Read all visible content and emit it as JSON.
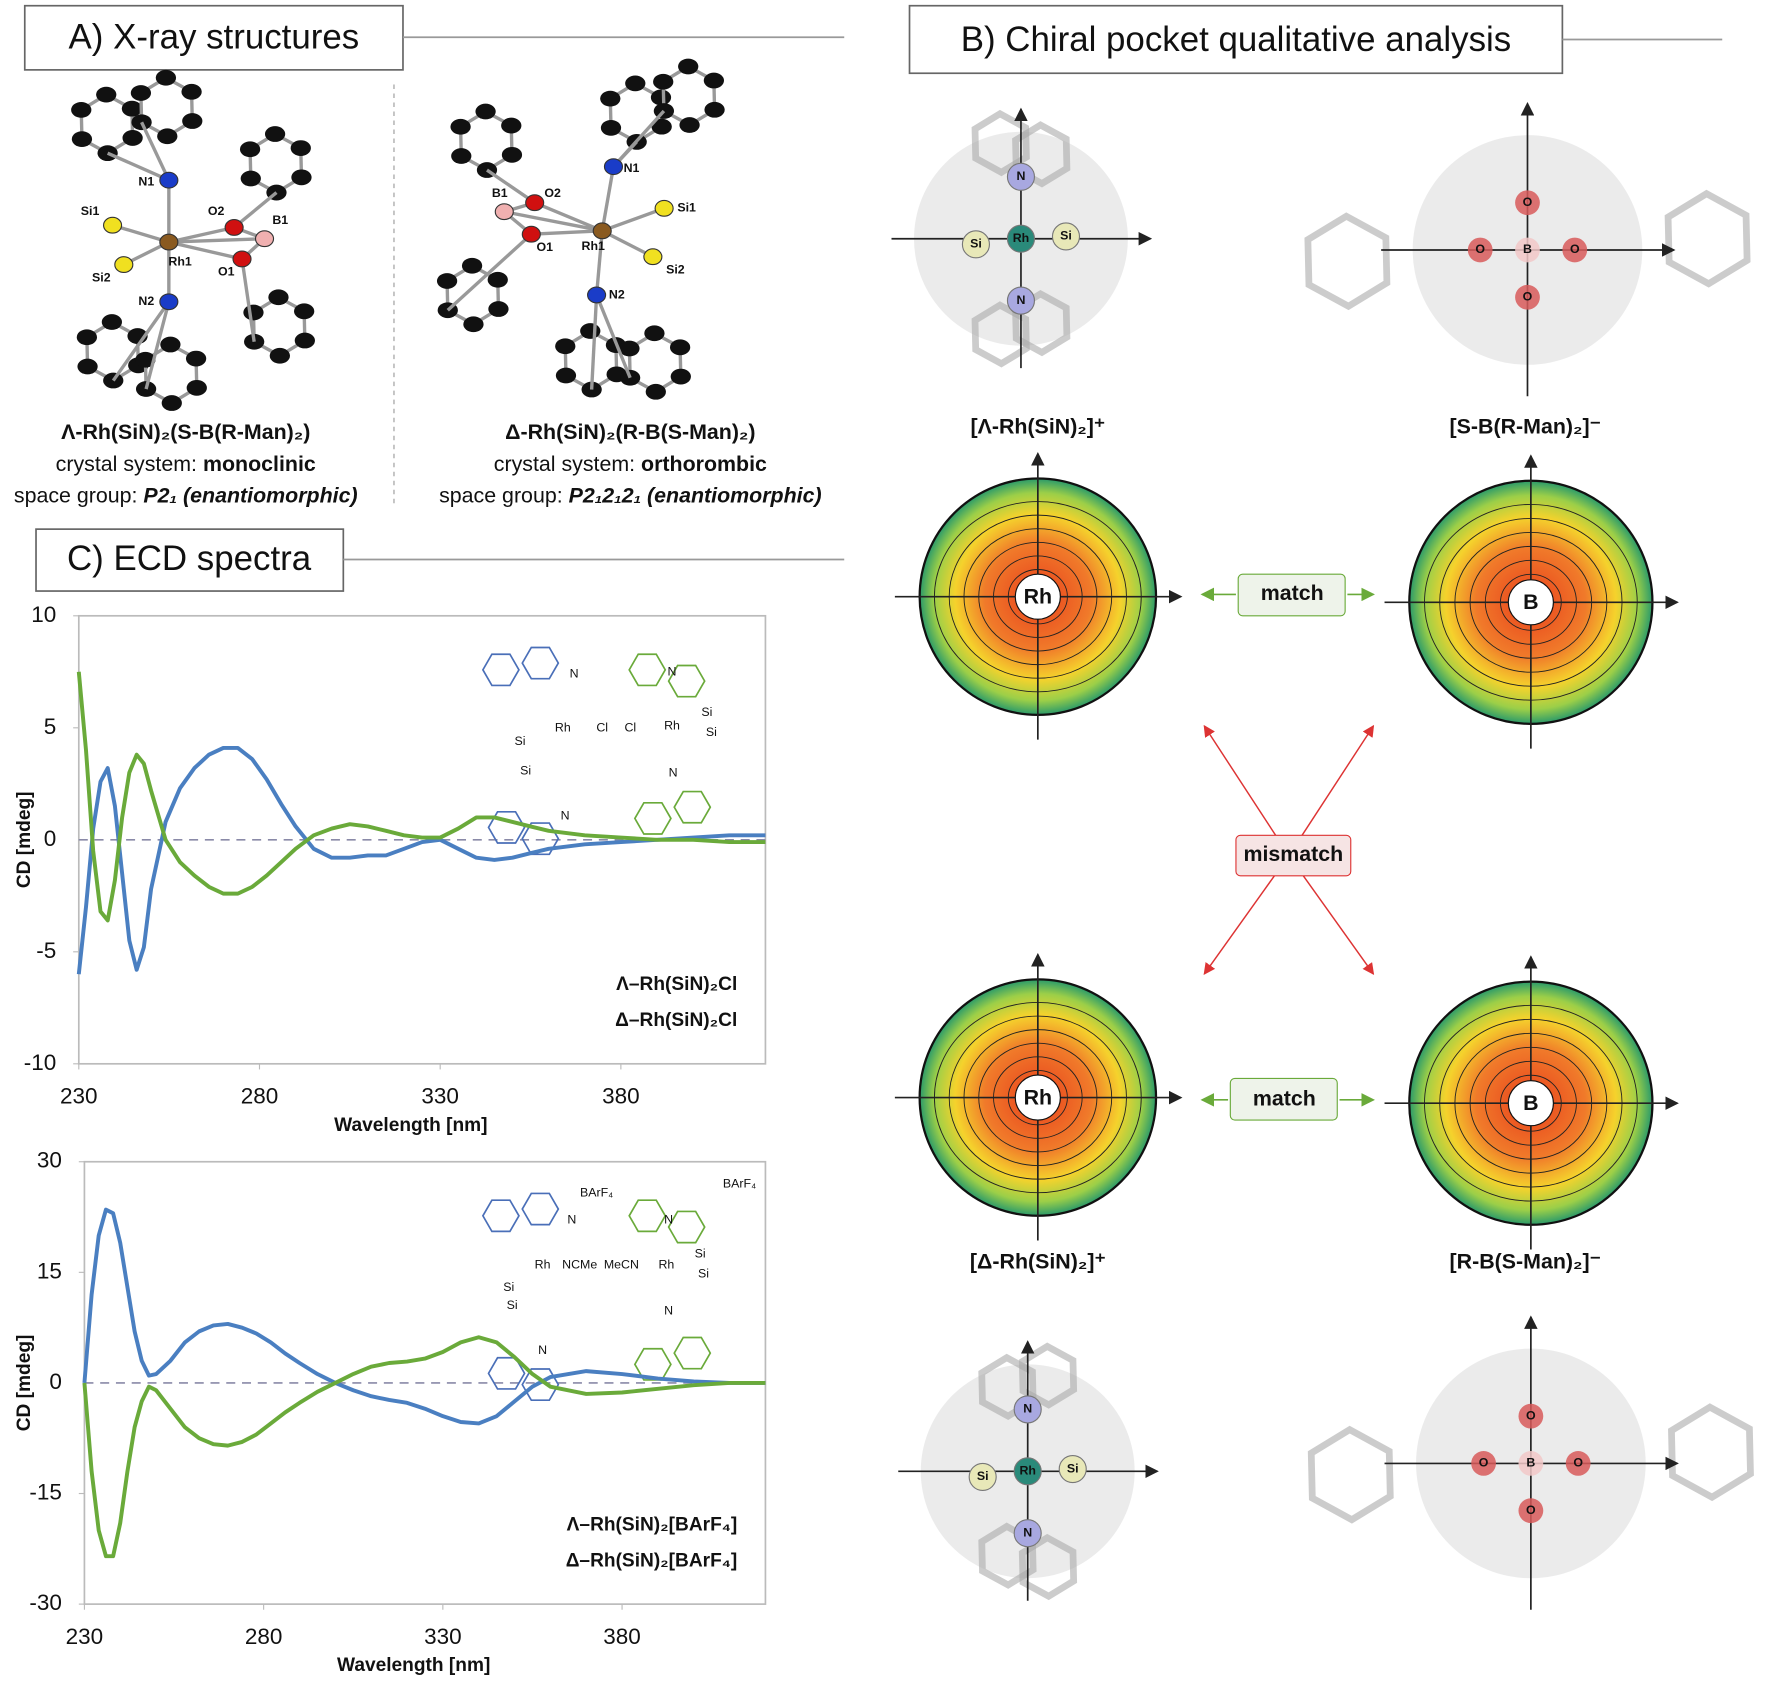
{
  "panel_a": {
    "title": "A) X-ray structures",
    "structures": [
      {
        "name": "Λ-Rh(SiN)₂(S-B(R-Man)₂)",
        "crystal_system_label": "crystal system: ",
        "crystal_system": "monoclinic",
        "space_group_label": "space group: ",
        "space_group": "P2₁ (enantiomorphic)",
        "atoms": [
          "N1",
          "Si1",
          "Si2",
          "Rh1",
          "N2",
          "O2",
          "B1",
          "O1"
        ]
      },
      {
        "name": "Δ-Rh(SiN)₂(R-B(S-Man)₂)",
        "crystal_system_label": "crystal system: ",
        "crystal_system": "orthorombic",
        "space_group_label": "space group: ",
        "space_group": "P2₁2₁2₁ (enantiomorphic)",
        "atoms": [
          "N1",
          "Si1",
          "Si2",
          "Rh1",
          "N2",
          "O2",
          "B1",
          "O1"
        ]
      }
    ]
  },
  "panel_b": {
    "title": "B) Chiral pocket qualitative analysis",
    "top_labels": [
      "[Λ-Rh(SiN)₂]⁺",
      "[S-B(R-Man)₂]⁻"
    ],
    "bottom_labels": [
      "[Δ-Rh(SiN)₂]⁺",
      "[R-B(S-Man)₂]⁻"
    ],
    "match": "match",
    "mismatch": "mismatch",
    "centers": [
      "Rh",
      "B"
    ],
    "cation_atoms": [
      "N",
      "Si",
      "Rh",
      "Si",
      "N"
    ],
    "anion_atoms": [
      "O",
      "O",
      "B",
      "O",
      "O"
    ]
  },
  "panel_c": {
    "title": "C) ECD spectra"
  },
  "chart_data": [
    {
      "type": "line",
      "xlabel": "Wavelength [nm]",
      "ylabel": "CD [mdeg]",
      "xlim": [
        230,
        420
      ],
      "xticks": [
        230,
        280,
        330,
        380
      ],
      "ylim": [
        -10,
        10
      ],
      "yticks": [
        -10,
        -5,
        0,
        5,
        10
      ],
      "inset_left": [
        "N",
        "Si",
        "Rh",
        "Cl",
        "Si",
        "N"
      ],
      "inset_right": [
        "N",
        "Cl",
        "Rh",
        "Si",
        "Si",
        "N"
      ],
      "x": [
        230,
        232,
        234,
        236,
        238,
        240,
        242,
        244,
        246,
        248,
        250,
        254,
        258,
        262,
        266,
        270,
        274,
        278,
        282,
        286,
        290,
        295,
        300,
        305,
        310,
        315,
        320,
        325,
        330,
        335,
        340,
        345,
        350,
        355,
        360,
        370,
        380,
        390,
        400,
        410,
        420
      ],
      "series": [
        {
          "name": "Λ–Rh(SiN)₂Cl",
          "color": "#4a7fc1",
          "values": [
            -6,
            -3,
            0.5,
            2.6,
            3.2,
            1.5,
            -1.5,
            -4.5,
            -5.8,
            -4.8,
            -2.2,
            0.8,
            2.3,
            3.2,
            3.8,
            4.1,
            4.1,
            3.6,
            2.7,
            1.6,
            0.6,
            -0.4,
            -0.8,
            -0.8,
            -0.7,
            -0.7,
            -0.4,
            -0.1,
            0,
            -0.4,
            -0.8,
            -0.9,
            -0.8,
            -0.6,
            -0.4,
            -0.2,
            -0.1,
            0,
            0.1,
            0.2,
            0.2
          ]
        },
        {
          "name": "Δ–Rh(SiN)₂Cl",
          "color": "#6aaa3a",
          "values": [
            7.5,
            4,
            -0.5,
            -3.2,
            -3.6,
            -1.8,
            1,
            3,
            3.8,
            3.4,
            2.2,
            0,
            -1,
            -1.6,
            -2.1,
            -2.4,
            -2.4,
            -2.1,
            -1.6,
            -1,
            -0.4,
            0.2,
            0.5,
            0.7,
            0.6,
            0.4,
            0.2,
            0.1,
            0.1,
            0.5,
            1,
            1,
            0.8,
            0.6,
            0.4,
            0.2,
            0.1,
            0,
            0,
            -0.1,
            -0.1
          ]
        }
      ]
    },
    {
      "type": "line",
      "xlabel": "Wavelength [nm]",
      "ylabel": "CD [mdeg]",
      "xlim": [
        230,
        420
      ],
      "xticks": [
        230,
        280,
        330,
        380
      ],
      "ylim": [
        -30,
        30
      ],
      "yticks": [
        -30,
        -15,
        0,
        15,
        30
      ],
      "inset_left": [
        "N",
        "Si",
        "Rh",
        "NCMe",
        "Si",
        "N",
        "BArF₄"
      ],
      "inset_right": [
        "N",
        "MeCN",
        "Rh",
        "Si",
        "Si",
        "N",
        "BArF₄"
      ],
      "x": [
        230,
        232,
        234,
        236,
        238,
        240,
        242,
        244,
        246,
        248,
        250,
        254,
        258,
        262,
        266,
        270,
        274,
        278,
        282,
        286,
        290,
        295,
        300,
        305,
        310,
        315,
        320,
        325,
        330,
        335,
        340,
        345,
        350,
        355,
        360,
        370,
        380,
        390,
        400,
        410,
        420
      ],
      "series": [
        {
          "name": "Λ–Rh(SiN)₂[BArF₄]",
          "color": "#4a7fc1",
          "values": [
            0,
            12,
            20,
            23.5,
            23,
            19,
            13,
            7,
            3,
            1,
            1.2,
            3,
            5.5,
            7,
            7.8,
            8,
            7.5,
            6.7,
            5.5,
            4,
            2.7,
            1.2,
            0,
            -1,
            -1.8,
            -2.3,
            -2.7,
            -3.5,
            -4.5,
            -5.3,
            -5.5,
            -4.5,
            -2.5,
            -0.5,
            0.8,
            1.6,
            1.2,
            0.6,
            0.2,
            0,
            0
          ]
        },
        {
          "name": "Δ–Rh(SiN)₂[BArF₄]",
          "color": "#6aaa3a",
          "values": [
            0,
            -12,
            -20,
            -23.5,
            -23.5,
            -19,
            -12,
            -6,
            -2.5,
            -0.5,
            -1,
            -3.5,
            -6,
            -7.5,
            -8.3,
            -8.5,
            -8,
            -7,
            -5.5,
            -4,
            -2.7,
            -1.2,
            0,
            1.2,
            2.2,
            2.7,
            2.9,
            3.3,
            4.2,
            5.5,
            6.2,
            5.5,
            3.5,
            1.2,
            -0.5,
            -1.5,
            -1.3,
            -0.8,
            -0.3,
            0,
            0
          ]
        }
      ]
    }
  ]
}
